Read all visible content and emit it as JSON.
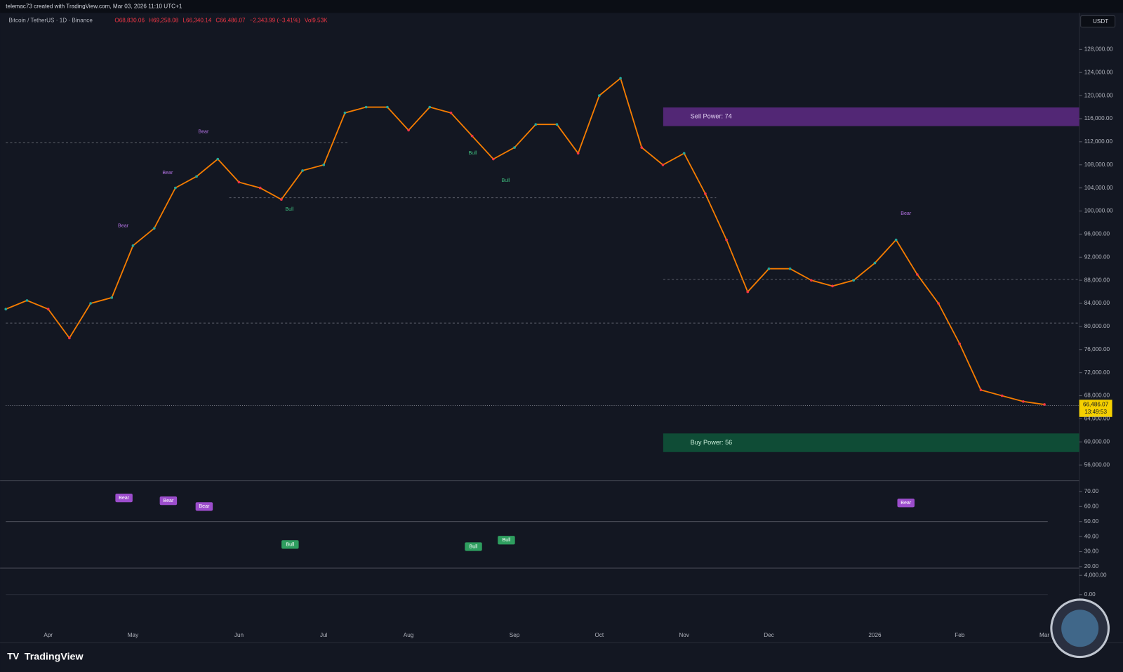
{
  "header": {
    "credit": "telemac73 created with TradingView.com, Mar 03, 2026 11:10 UTC+1",
    "symbol": "Bitcoin / TetherUS · 1D · Binance",
    "ohlc": [
      "O68,830.06",
      "H69,258.08",
      "L66,340.14",
      "C66,486.07",
      "−2,343.99 (−3.41%)",
      "Vol9.53K"
    ],
    "currency": "USDT",
    "brand": "TradingView"
  },
  "chart_data": {
    "type": "line",
    "categories": [
      null,
      null,
      "Apr",
      null,
      null,
      null,
      "May",
      null,
      null,
      null,
      null,
      "Jun",
      null,
      null,
      null,
      "Jul",
      null,
      null,
      null,
      "Aug",
      null,
      null,
      null,
      null,
      "Sep",
      null,
      null,
      null,
      "Oct",
      null,
      null,
      null,
      "Nov",
      null,
      null,
      null,
      "Dec",
      null,
      null,
      null,
      null,
      "2026",
      null,
      null,
      null,
      "Feb",
      null,
      null,
      null,
      "Mar"
    ],
    "values": [
      83000,
      84500,
      83000,
      78000,
      84000,
      85000,
      94000,
      97000,
      104000,
      106000,
      109000,
      105000,
      104000,
      102000,
      107000,
      108000,
      117000,
      118000,
      118000,
      114000,
      118000,
      117000,
      113000,
      109000,
      111000,
      115000,
      115000,
      110000,
      120000,
      123000,
      111000,
      108000,
      110000,
      103000,
      95000,
      86000,
      90000,
      90000,
      88000,
      87000,
      88000,
      91000,
      95000,
      89000,
      84000,
      77000,
      69000,
      68000,
      67000,
      66486.07
    ],
    "color": "#f57c00",
    "ylim": [
      53400,
      134200
    ],
    "yticks": [
      {
        "value": 56000,
        "label": "56,000.00"
      },
      {
        "value": 60000,
        "label": "60,000.00"
      },
      {
        "value": 64000,
        "label": "64,000.00"
      },
      {
        "value": 68000,
        "label": "68,000.00"
      },
      {
        "value": 72000,
        "label": "72,000.00"
      },
      {
        "value": 76000,
        "label": "76,000.00"
      },
      {
        "value": 80000,
        "label": "80,000.00"
      },
      {
        "value": 84000,
        "label": "84,000.00"
      },
      {
        "value": 88000,
        "label": "88,000.00"
      },
      {
        "value": 92000,
        "label": "92,000.00"
      },
      {
        "value": 96000,
        "label": "96,000.00"
      },
      {
        "value": 100000,
        "label": "100,000.00"
      },
      {
        "value": 104000,
        "label": "104,000.00"
      },
      {
        "value": 108000,
        "label": "108,000.00"
      },
      {
        "value": 112000,
        "label": "112,000.00"
      },
      {
        "value": 116000,
        "label": "116,000.00"
      },
      {
        "value": 120000,
        "label": "120,000.00"
      },
      {
        "value": 124000,
        "label": "124,000.00"
      },
      {
        "value": 128000,
        "label": "128,000.00"
      }
    ],
    "last_price_label": "66,486.07",
    "countdown": "13:49:53",
    "sell_power": "Sell Power: 74",
    "buy_power": "Buy Power: 56",
    "annotations": [
      "Bear",
      "Bear",
      "Bear",
      "Bear",
      "Bull",
      "Bull",
      "Bull"
    ],
    "rsi": {
      "ylim": [
        19.5,
        76.7
      ],
      "yticks": [
        {
          "value": 20,
          "label": "20.00"
        },
        {
          "value": 30,
          "label": "30.00"
        },
        {
          "value": 40,
          "label": "40.00"
        },
        {
          "value": 50,
          "label": "50.00"
        },
        {
          "value": 60,
          "label": "60.00"
        },
        {
          "value": 70,
          "label": "70.00"
        }
      ],
      "annotations": [
        "Bear",
        "Bear",
        "Bear",
        "Bear",
        "Bull",
        "Bull",
        "Bull"
      ]
    },
    "macd": {
      "ylim": [
        -9630,
        5330
      ],
      "yticks": [
        {
          "value": 0,
          "label": "0.00"
        },
        {
          "value": 4000,
          "label": "4,000.00"
        }
      ]
    }
  }
}
